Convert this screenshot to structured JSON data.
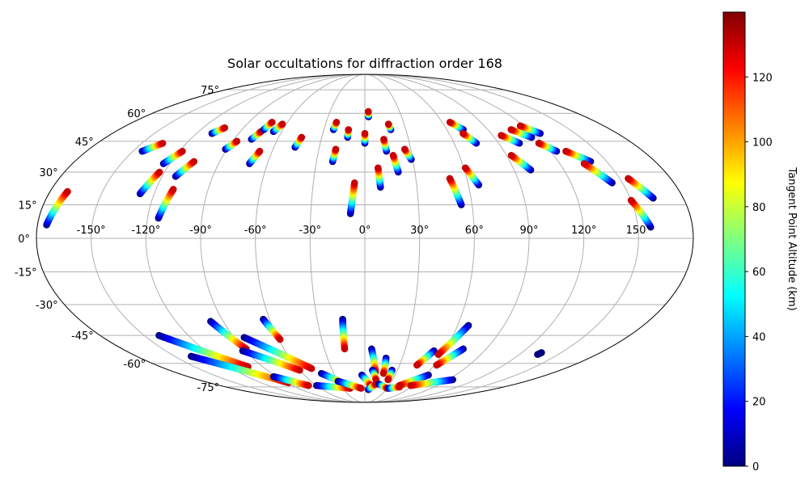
{
  "figure": {
    "title": "Solar occultations for diffraction order 168"
  },
  "map": {
    "projection": "mollweide",
    "grid": true,
    "lon_labels": [
      "-150°",
      "-120°",
      "-90°",
      "-60°",
      "-30°",
      "0°",
      "30°",
      "60°",
      "90°",
      "120°",
      "150°"
    ],
    "lat_labels": [
      "75°",
      "60°",
      "45°",
      "30°",
      "15°",
      "0°",
      "-15°",
      "-30°",
      "-45°",
      "-60°",
      "-75°"
    ],
    "grid_color": "#b0b0b0"
  },
  "colorbar": {
    "label": "Tangent Point Altitude (km)",
    "ticks": [
      "0",
      "20",
      "40",
      "60",
      "80",
      "100",
      "120"
    ],
    "vmin": 0,
    "vmax": 140,
    "colormap": "jet"
  },
  "chart_data": {
    "type": "scatter",
    "title": "Solar occultations for diffraction order 168",
    "projection": "mollweide",
    "color_by": "Tangent Point Altitude (km)",
    "tracks": [
      {
        "lon0": -175,
        "lat0": 6,
        "lon1": -170,
        "lat1": 21,
        "alt0": 0,
        "alt1": 130
      },
      {
        "lon0": -144,
        "lat0": 40,
        "lon1": -136,
        "lat1": 44,
        "alt0": 0,
        "alt1": 130
      },
      {
        "lon0": -128,
        "lat0": 20,
        "lon1": -123,
        "lat1": 30,
        "alt0": 0,
        "alt1": 130
      },
      {
        "lon0": -124,
        "lat0": 34,
        "lon1": -118,
        "lat1": 40,
        "alt0": 0,
        "alt1": 130
      },
      {
        "lon0": -114,
        "lat0": 9,
        "lon1": -110,
        "lat1": 22,
        "alt0": 0,
        "alt1": 130
      },
      {
        "lon0": -112,
        "lat0": 28,
        "lon1": -106,
        "lat1": 35,
        "alt0": 0,
        "alt1": 130
      },
      {
        "lon0": -109,
        "lat0": 49,
        "lon1": -104,
        "lat1": 52,
        "alt0": 0,
        "alt1": 130
      },
      {
        "lon0": -91,
        "lat0": 41,
        "lon1": -87,
        "lat1": 45,
        "alt0": 0,
        "alt1": 130
      },
      {
        "lon0": -78,
        "lat0": 46,
        "lon1": -75,
        "lat1": 50,
        "alt0": 0,
        "alt1": 130
      },
      {
        "lon0": -74,
        "lat0": 51,
        "lon1": -72,
        "lat1": 55,
        "alt0": 0,
        "alt1": 130
      },
      {
        "lon0": -71,
        "lat0": 34,
        "lon1": -68,
        "lat1": 40,
        "alt0": 0,
        "alt1": 130
      },
      {
        "lon0": -66,
        "lat0": 50,
        "lon1": -63,
        "lat1": 54,
        "alt0": 0,
        "alt1": 130
      },
      {
        "lon0": -46,
        "lat0": 42,
        "lon1": -44,
        "lat1": 47,
        "alt0": 0,
        "alt1": 130
      },
      {
        "lon0": -23,
        "lat0": 51,
        "lon1": -22,
        "lat1": 55,
        "alt0": 0,
        "alt1": 130
      },
      {
        "lon0": -20,
        "lat0": 35,
        "lon1": -19,
        "lat1": 41,
        "alt0": 0,
        "alt1": 130
      },
      {
        "lon0": -12,
        "lat0": 47,
        "lon1": -12,
        "lat1": 51,
        "alt0": 0,
        "alt1": 130
      },
      {
        "lon0": -8,
        "lat0": 11,
        "lon1": -6,
        "lat1": 25,
        "alt0": 0,
        "alt1": 130
      },
      {
        "lon0": 0,
        "lat0": 44,
        "lon1": 0,
        "lat1": 49,
        "alt0": 0,
        "alt1": 130
      },
      {
        "lon0": 3,
        "lat0": 58,
        "lon1": 3,
        "lat1": 61,
        "alt0": 0,
        "alt1": 130
      },
      {
        "lon0": 9,
        "lat0": 23,
        "lon1": 8,
        "lat1": 32,
        "alt0": 0,
        "alt1": 130
      },
      {
        "lon0": 14,
        "lat0": 40,
        "lon1": 13,
        "lat1": 46,
        "alt0": 0,
        "alt1": 130
      },
      {
        "lon0": 19,
        "lat0": 51,
        "lon1": 18,
        "lat1": 54,
        "alt0": 0,
        "alt1": 130
      },
      {
        "lon0": 20,
        "lat0": 30,
        "lon1": 18,
        "lat1": 38,
        "alt0": 0,
        "alt1": 130
      },
      {
        "lon0": 29,
        "lat0": 36,
        "lon1": 26,
        "lat1": 41,
        "alt0": 0,
        "alt1": 130
      },
      {
        "lon0": 54,
        "lat0": 15,
        "lon1": 50,
        "lat1": 27,
        "alt0": 0,
        "alt1": 130
      },
      {
        "lon0": 66,
        "lat0": 24,
        "lon1": 61,
        "lat1": 32,
        "alt0": 0,
        "alt1": 130
      },
      {
        "lon0": 72,
        "lat0": 51,
        "lon1": 66,
        "lat1": 55,
        "alt0": 0,
        "alt1": 130
      },
      {
        "lon0": 75,
        "lat0": 44,
        "lon1": 70,
        "lat1": 49,
        "alt0": 0,
        "alt1": 130
      },
      {
        "lon0": 100,
        "lat0": 31,
        "lon1": 93,
        "lat1": 38,
        "alt0": 0,
        "alt1": 130
      },
      {
        "lon0": 104,
        "lat0": 44,
        "lon1": 96,
        "lat1": 48,
        "alt0": 0,
        "alt1": 130
      },
      {
        "lon0": 116,
        "lat0": 47,
        "lon1": 107,
        "lat1": 51,
        "alt0": 0,
        "alt1": 130
      },
      {
        "lon0": 124,
        "lat0": 40,
        "lon1": 117,
        "lat1": 44,
        "alt0": 0,
        "alt1": 130
      },
      {
        "lon0": 125,
        "lat0": 49,
        "lon1": 117,
        "lat1": 53,
        "alt0": 0,
        "alt1": 130
      },
      {
        "lon0": 140,
        "lat0": 35,
        "lon1": 130,
        "lat1": 40,
        "alt0": 0,
        "alt1": 130
      },
      {
        "lon0": 144,
        "lat0": 25,
        "lon1": 135,
        "lat1": 34,
        "alt0": 0,
        "alt1": 130
      },
      {
        "lon0": 157,
        "lat0": 5,
        "lon1": 150,
        "lat1": 17,
        "alt0": 0,
        "alt1": 130
      },
      {
        "lon0": 163,
        "lat0": 18,
        "lon1": 155,
        "lat1": 27,
        "alt0": 0,
        "alt1": 130
      },
      {
        "lon0": -140,
        "lat0": -45,
        "lon1": -103,
        "lat1": -62,
        "alt0": 0,
        "alt1": 130
      },
      {
        "lon0": -137,
        "lat0": -56,
        "lon1": -88,
        "lat1": -72,
        "alt0": 0,
        "alt1": 130
      },
      {
        "lon0": -98,
        "lat0": -38,
        "lon1": -88,
        "lat1": -52,
        "alt0": 0,
        "alt1": 130
      },
      {
        "lon0": -92,
        "lat0": -53,
        "lon1": -60,
        "lat1": -64,
        "alt0": 0,
        "alt1": 130
      },
      {
        "lon0": -83,
        "lat0": -46,
        "lon1": -48,
        "lat1": -63,
        "alt0": 0,
        "alt1": 130
      },
      {
        "lon0": -64,
        "lat0": -37,
        "lon1": -59,
        "lat1": -47,
        "alt0": 0,
        "alt1": 130
      },
      {
        "lon0": -93,
        "lat0": -68,
        "lon1": -70,
        "lat1": -74,
        "alt0": 0,
        "alt1": 130
      },
      {
        "lon0": -60,
        "lat0": -74,
        "lon1": -20,
        "lat1": -76,
        "alt0": 0,
        "alt1": 130
      },
      {
        "lon0": -42,
        "lat0": -66,
        "lon1": -23,
        "lat1": -73,
        "alt0": 0,
        "alt1": 130
      },
      {
        "lon0": -30,
        "lat0": -71,
        "lon1": -5,
        "lat1": -76,
        "alt0": 0,
        "alt1": 130
      },
      {
        "lon0": -14,
        "lat0": -37,
        "lon1": -15,
        "lat1": -52,
        "alt0": 0,
        "alt1": 130
      },
      {
        "lon0": -3,
        "lat0": -67,
        "lon1": 7,
        "lat1": -74,
        "alt0": 0,
        "alt1": 130
      },
      {
        "lon0": 5,
        "lat0": -52,
        "lon1": 10,
        "lat1": -65,
        "alt0": 0,
        "alt1": 130
      },
      {
        "lon0": 7,
        "lat0": -64,
        "lon1": 12,
        "lat1": -70,
        "alt0": 0,
        "alt1": 130
      },
      {
        "lon0": 17,
        "lat0": -57,
        "lon1": 18,
        "lat1": -66,
        "alt0": 0,
        "alt1": 130
      },
      {
        "lon0": 25,
        "lat0": -64,
        "lon1": 25,
        "lat1": -70,
        "alt0": 0,
        "alt1": 130
      },
      {
        "lon0": 5,
        "lat0": -77,
        "lon1": 13,
        "lat1": -73,
        "alt0": 0,
        "alt1": 130
      },
      {
        "lon0": 17,
        "lat0": -73,
        "lon1": 30,
        "lat1": -76,
        "alt0": 0,
        "alt1": 130
      },
      {
        "lon0": 32,
        "lat0": -76,
        "lon1": 45,
        "lat1": -75,
        "alt0": 0,
        "alt1": 130
      },
      {
        "lon0": 63,
        "lat0": -67,
        "lon1": 43,
        "lat1": -74,
        "alt0": 0,
        "alt1": 130
      },
      {
        "lon0": 52,
        "lat0": -53,
        "lon1": 45,
        "lat1": -61,
        "alt0": 0,
        "alt1": 130
      },
      {
        "lon0": 73,
        "lat0": -52,
        "lon1": 62,
        "lat1": -61,
        "alt0": 0,
        "alt1": 130
      },
      {
        "lon0": 67,
        "lat0": -40,
        "lon1": 57,
        "lat1": -55,
        "alt0": 0,
        "alt1": 130
      },
      {
        "lon0": 95,
        "lat0": -70,
        "lon1": 57,
        "lat1": -74,
        "alt0": 0,
        "alt1": 130
      },
      {
        "lon0": 135,
        "lat0": -54,
        "lon1": 134,
        "lat1": -55,
        "alt0": 0,
        "alt1": 0
      }
    ]
  }
}
